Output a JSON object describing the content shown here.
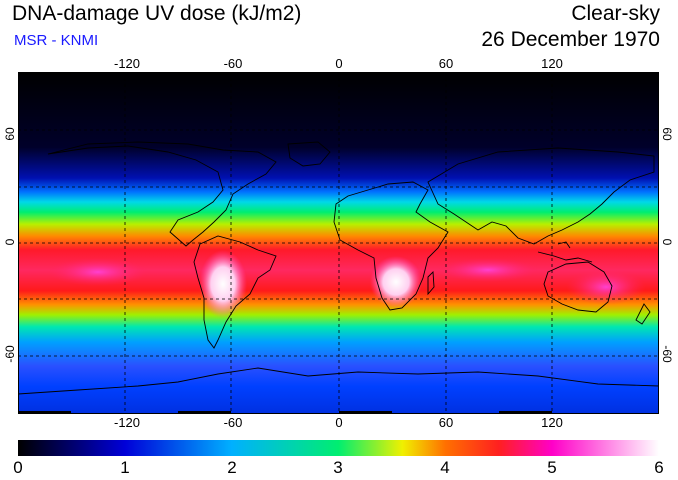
{
  "header": {
    "title": "DNA-damage UV dose (kJ/m2)",
    "subtitle": "MSR - KNMI",
    "condition": "Clear-sky",
    "date": "26 December 1970"
  },
  "map": {
    "projection": "equirectangular",
    "lon_range": [
      -180,
      180
    ],
    "lat_range": [
      -90,
      90
    ],
    "lon_ticks": [
      "-120",
      "-60",
      "0",
      "60",
      "120"
    ],
    "lat_ticks_left": [
      "60",
      "0",
      "-60"
    ],
    "lat_ticks_right": [
      "60",
      "0",
      "-60"
    ],
    "gridlines": "dashed, every 30 degrees"
  },
  "colorbar": {
    "ticks": [
      "0",
      "1",
      "2",
      "3",
      "4",
      "5",
      "6"
    ],
    "min": 0,
    "max": 6,
    "colors": [
      "#000000",
      "#0000d8",
      "#00b0ff",
      "#00ee70",
      "#f0f000",
      "#ff2020",
      "#ff00c8",
      "#ffffff"
    ]
  }
}
